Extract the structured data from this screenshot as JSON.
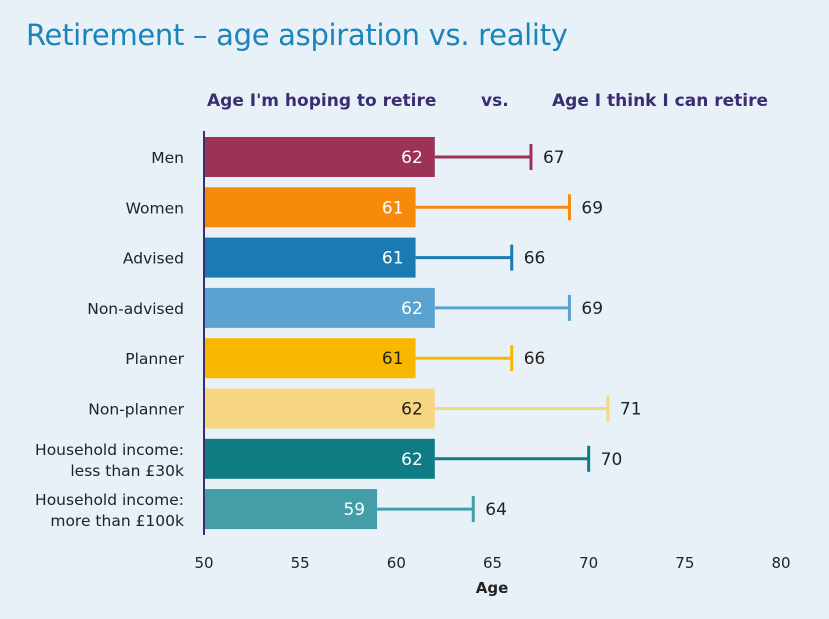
{
  "title": "Retirement – age aspiration vs. reality",
  "header": {
    "left": "Age I'm hoping to retire",
    "vs": "vs.",
    "right": "Age I think I can retire"
  },
  "chart_data": {
    "type": "bar",
    "xlabel": "Age",
    "xlim": [
      50,
      80
    ],
    "ticks": [
      50,
      55,
      60,
      65,
      70,
      75,
      80
    ],
    "grid": false,
    "categories": [
      [
        "Men"
      ],
      [
        "Women"
      ],
      [
        "Advised"
      ],
      [
        "Non-advised"
      ],
      [
        "Planner"
      ],
      [
        "Non-planner"
      ],
      [
        "Household income:",
        "less than £30k"
      ],
      [
        "Household income:",
        "more than £100k"
      ]
    ],
    "series": [
      {
        "name": "Age I'm hoping to retire",
        "values": [
          62,
          61,
          61,
          62,
          61,
          62,
          62,
          59
        ]
      },
      {
        "name": "Age I think I can retire",
        "values": [
          67,
          69,
          66,
          69,
          66,
          71,
          70,
          64
        ]
      }
    ],
    "colors": [
      "#9c3356",
      "#f58a0b",
      "#1a7bb3",
      "#5aa3d0",
      "#f9b800",
      "#f6d680",
      "#0f7b82",
      "#439ea7"
    ],
    "label_colors": [
      "#ffffff",
      "#ffffff",
      "#ffffff",
      "#ffffff",
      "#222222",
      "#222222",
      "#ffffff",
      "#ffffff"
    ]
  }
}
